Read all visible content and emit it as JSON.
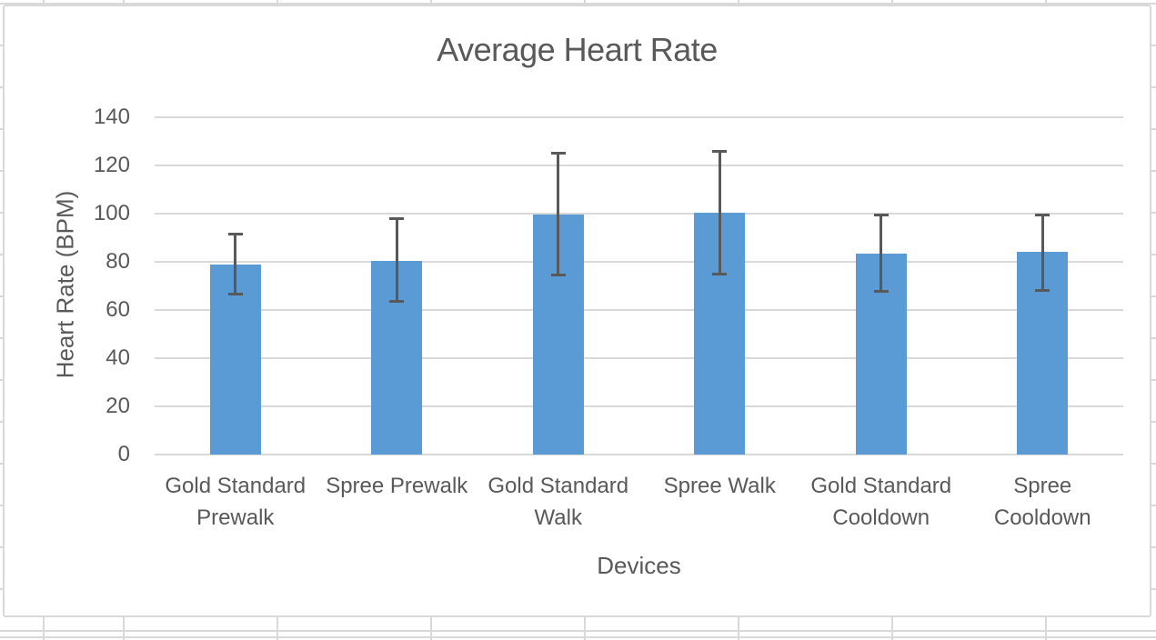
{
  "chart_data": {
    "type": "bar",
    "title": "Average Heart Rate",
    "xlabel": "Devices",
    "ylabel": "Heart Rate (BPM)",
    "ylim": [
      0,
      140
    ],
    "yticks": [
      0,
      20,
      40,
      60,
      80,
      100,
      120,
      140
    ],
    "grid": true,
    "legend": false,
    "categories": [
      "Gold Standard Prewalk",
      "Spree Prewalk",
      "Gold Standard Walk",
      "Spree Walk",
      "Gold Standard Cooldown",
      "Spree Cooldown"
    ],
    "category_lines": [
      [
        "Gold Standard",
        "Prewalk"
      ],
      [
        "Spree Prewalk"
      ],
      [
        "Gold Standard",
        "Walk"
      ],
      [
        "Spree Walk"
      ],
      [
        "Gold Standard",
        "Cooldown"
      ],
      [
        "Spree",
        "Cooldown"
      ]
    ],
    "series": [
      {
        "name": "Average Heart Rate",
        "values": [
          79,
          80.5,
          99.5,
          100.5,
          83.5,
          84
        ]
      }
    ],
    "error_bars": {
      "upper": [
        92,
        98.5,
        125.5,
        126.5,
        100,
        100
      ],
      "lower": [
        66,
        63,
        74,
        74.5,
        67,
        67.5
      ]
    },
    "colors": {
      "bar": "#5B9BD5",
      "error_bar": "#595959",
      "gridline": "#D9D9D9",
      "text": "#595959",
      "chart_border": "#D9D9D9",
      "sheet_gridline": "#D9D9D9"
    }
  }
}
